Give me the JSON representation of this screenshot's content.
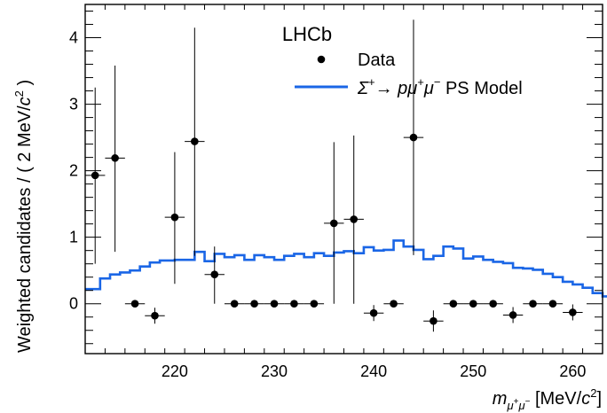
{
  "chart_data": {
    "type": "scatter",
    "experiment_label": "LHCb",
    "xlabel": {
      "main": "m",
      "sub_mu1": "μ",
      "sup_plus": "+",
      "sub_mu2": "μ",
      "sup_minus": "−",
      "unit_open": " [MeV/",
      "unit_c": "c",
      "unit_pow": "2",
      "unit_close": "]"
    },
    "ylabel": {
      "main": "Weighted candidates / ( 2 MeV/",
      "c": "c",
      "pow": "2",
      "close": " )"
    },
    "xlim": [
      211,
      263
    ],
    "ylim": [
      -0.75,
      4.5
    ],
    "x_ticks": [
      220,
      230,
      240,
      250,
      260
    ],
    "y_ticks": [
      0,
      1,
      2,
      3,
      4
    ],
    "legend": {
      "position": "top-right",
      "data_label": "Data",
      "model_label": {
        "sigma": "Σ",
        "sigma_sup": "+",
        "arrow": "→ ",
        "p": "p",
        "mu1": "μ",
        "mu1_sup": "+",
        "mu2": "μ",
        "mu2_sup": "−",
        "rest": " PS Model"
      }
    },
    "colors": {
      "data": "#000000",
      "model": "#1a66e6"
    },
    "data": {
      "name": "Data",
      "x_err": 1.0,
      "points": [
        {
          "x": 212,
          "y": 1.93,
          "lo": 0.6,
          "hi": 3.25
        },
        {
          "x": 214,
          "y": 2.19,
          "lo": 0.78,
          "hi": 3.58
        },
        {
          "x": 216,
          "y": 0.0,
          "lo": 0.0,
          "hi": 0.0
        },
        {
          "x": 218,
          "y": -0.18,
          "lo": -0.3,
          "hi": -0.06
        },
        {
          "x": 220,
          "y": 1.3,
          "lo": 0.3,
          "hi": 2.28
        },
        {
          "x": 222,
          "y": 2.44,
          "lo": 0.72,
          "hi": 4.15
        },
        {
          "x": 224,
          "y": 0.44,
          "lo": 0.0,
          "hi": 0.86
        },
        {
          "x": 226,
          "y": 0.0,
          "lo": 0.0,
          "hi": 0.0
        },
        {
          "x": 228,
          "y": 0.0,
          "lo": 0.0,
          "hi": 0.0
        },
        {
          "x": 230,
          "y": 0.0,
          "lo": 0.0,
          "hi": 0.0
        },
        {
          "x": 232,
          "y": 0.0,
          "lo": 0.0,
          "hi": 0.0
        },
        {
          "x": 234,
          "y": 0.0,
          "lo": 0.0,
          "hi": 0.0
        },
        {
          "x": 236,
          "y": 1.21,
          "lo": 0.0,
          "hi": 2.43
        },
        {
          "x": 238,
          "y": 1.27,
          "lo": 0.0,
          "hi": 2.53
        },
        {
          "x": 240,
          "y": -0.14,
          "lo": -0.26,
          "hi": -0.02
        },
        {
          "x": 242,
          "y": 0.0,
          "lo": 0.0,
          "hi": 0.0
        },
        {
          "x": 244,
          "y": 2.5,
          "lo": 0.73,
          "hi": 4.27
        },
        {
          "x": 246,
          "y": -0.26,
          "lo": -0.42,
          "hi": -0.1
        },
        {
          "x": 248,
          "y": 0.0,
          "lo": 0.0,
          "hi": 0.0
        },
        {
          "x": 250,
          "y": 0.0,
          "lo": 0.0,
          "hi": 0.0
        },
        {
          "x": 252,
          "y": 0.0,
          "lo": 0.0,
          "hi": 0.0
        },
        {
          "x": 254,
          "y": -0.17,
          "lo": -0.29,
          "hi": -0.05
        },
        {
          "x": 256,
          "y": 0.0,
          "lo": 0.0,
          "hi": 0.0
        },
        {
          "x": 258,
          "y": 0.0,
          "lo": 0.0,
          "hi": 0.0
        },
        {
          "x": 260,
          "y": -0.13,
          "lo": -0.25,
          "hi": -0.01
        }
      ]
    },
    "model": {
      "name": "PS Model",
      "bin_width": 0.5,
      "x_start": 211,
      "values": [
        0.22,
        0.22,
        0.22,
        0.38,
        0.38,
        0.44,
        0.44,
        0.47,
        0.47,
        0.5,
        0.5,
        0.56,
        0.56,
        0.62,
        0.62,
        0.65,
        0.65,
        0.65,
        0.66,
        0.66,
        0.66,
        0.66,
        0.78,
        0.78,
        0.64,
        0.64,
        0.75,
        0.75,
        0.7,
        0.7,
        0.73,
        0.73,
        0.66,
        0.66,
        0.73,
        0.73,
        0.7,
        0.7,
        0.66,
        0.66,
        0.72,
        0.72,
        0.75,
        0.75,
        0.7,
        0.7,
        0.76,
        0.76,
        0.72,
        0.72,
        0.77,
        0.77,
        0.79,
        0.79,
        0.76,
        0.76,
        0.85,
        0.85,
        0.8,
        0.8,
        0.81,
        0.81,
        0.95,
        0.95,
        0.86,
        0.86,
        0.81,
        0.81,
        0.67,
        0.67,
        0.72,
        0.72,
        0.86,
        0.86,
        0.83,
        0.83,
        0.68,
        0.68,
        0.71,
        0.71,
        0.66,
        0.66,
        0.63,
        0.63,
        0.61,
        0.61,
        0.54,
        0.54,
        0.53,
        0.53,
        0.51,
        0.51,
        0.45,
        0.45,
        0.4,
        0.4,
        0.33,
        0.33,
        0.29,
        0.29,
        0.24,
        0.24,
        0.16,
        0.16,
        0.11,
        0.11,
        0.08,
        0.08,
        0.05,
        0.05,
        0.03,
        0.03,
        0.02,
        0.02,
        0.01,
        0.01,
        0.0,
        0.0,
        0.0,
        0.0,
        0.0,
        0.0,
        0.0,
        0.0
      ]
    }
  }
}
